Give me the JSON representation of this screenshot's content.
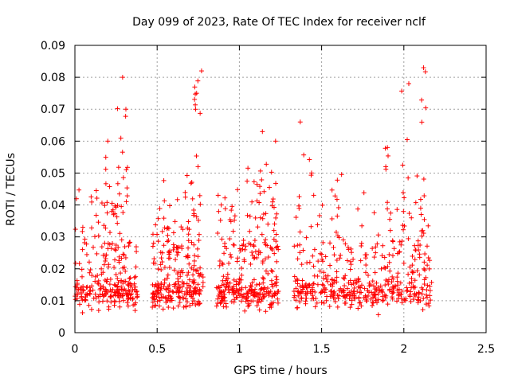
{
  "colors": {
    "series": "#ff0000"
  },
  "chart_data": {
    "type": "scatter",
    "title": "Day 099 of 2023, Rate Of TEC Index for receiver nclf",
    "xlabel": "GPS time / hours",
    "ylabel": "ROTI / TECUs",
    "xlim": [
      0,
      2.5
    ],
    "ylim": [
      0,
      0.09
    ],
    "xticks": [
      "0",
      "0.5",
      "1",
      "1.5",
      "2",
      "2.5"
    ],
    "yticks": [
      "0",
      "0.01",
      "0.02",
      "0.03",
      "0.04",
      "0.05",
      "0.06",
      "0.07",
      "0.08",
      "0.09"
    ],
    "grid": true,
    "marker": "+",
    "series": [
      {
        "name": "ROTI",
        "clusters": [
          {
            "x_range": [
              0.0,
              0.38
            ],
            "count": 210,
            "base": [
              0.005,
              0.026
            ],
            "spikes": [
              [
                0.28,
                0.08
              ],
              [
                0.31,
                0.07
              ],
              [
                0.2,
                0.06
              ],
              [
                0.25,
                0.055
              ],
              [
                0.11,
                0.05
              ]
            ]
          },
          {
            "x_range": [
              0.47,
              0.78
            ],
            "count": 200,
            "base": [
              0.005,
              0.025
            ],
            "spikes": [
              [
                0.75,
                0.082
              ],
              [
                0.73,
                0.075
              ],
              [
                0.52,
                0.049
              ],
              [
                0.7,
                0.053
              ],
              [
                0.57,
                0.045
              ]
            ]
          },
          {
            "x_range": [
              0.86,
              1.24
            ],
            "count": 230,
            "base": [
              0.005,
              0.024
            ],
            "spikes": [
              [
                1.14,
                0.063
              ],
              [
                1.05,
                0.055
              ],
              [
                1.2,
                0.06
              ],
              [
                1.1,
                0.048
              ],
              [
                0.95,
                0.04
              ]
            ]
          },
          {
            "x_range": [
              1.33,
              2.17
            ],
            "count": 380,
            "base": [
              0.005,
              0.027
            ],
            "spikes": [
              [
                2.12,
                0.083
              ],
              [
                2.01,
                0.078
              ],
              [
                1.37,
                0.066
              ],
              [
                1.9,
                0.058
              ],
              [
                1.6,
                0.052
              ],
              [
                2.1,
                0.054
              ],
              [
                1.45,
                0.055
              ]
            ]
          }
        ],
        "highlighted_points": [
          {
            "x": 2.12,
            "y": 0.083
          },
          {
            "x": 0.29,
            "y": 0.08
          },
          {
            "x": 0.77,
            "y": 0.082
          },
          {
            "x": 2.03,
            "y": 0.078
          },
          {
            "x": 0.31,
            "y": 0.07
          },
          {
            "x": 1.37,
            "y": 0.066
          },
          {
            "x": 1.14,
            "y": 0.063
          },
          {
            "x": 0.2,
            "y": 0.06
          },
          {
            "x": 1.22,
            "y": 0.06
          },
          {
            "x": 1.9,
            "y": 0.058
          },
          {
            "x": 0.74,
            "y": 0.075
          },
          {
            "x": 0.89,
            "y": 0.04
          }
        ]
      }
    ]
  }
}
